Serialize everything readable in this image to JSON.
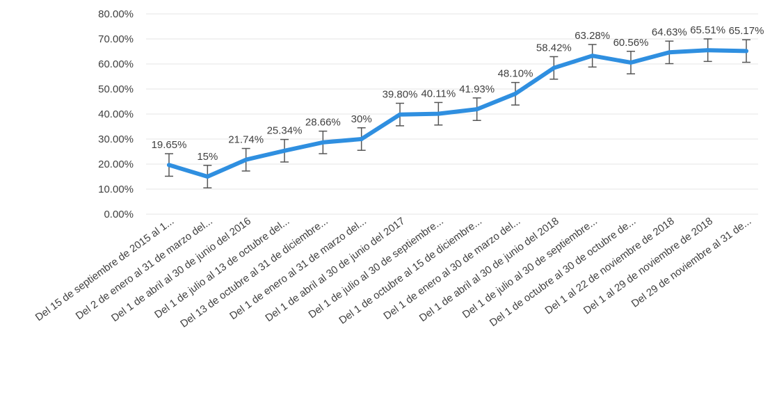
{
  "chart_data": {
    "type": "line",
    "title": "",
    "xlabel": "",
    "ylabel": "",
    "ylim": [
      0,
      80
    ],
    "yticks": [
      "0.00%",
      "10.00%",
      "20.00%",
      "30.00%",
      "40.00%",
      "50.00%",
      "60.00%",
      "70.00%",
      "80.00%"
    ],
    "grid": true,
    "legend": "none",
    "error_bars": true,
    "error_bar_size": 4.5,
    "categories": [
      "Del 15 de septiembre de 2015 al 1...",
      "Del 2 de enero al 31 de marzo del...",
      "Del 1 de abril al 30 de junio del 2016",
      "Del 1 de julio al 13 de octubre del...",
      "Del 13 de octubre al 31 de diciembre...",
      "Del 1 de enero al 31 de marzo del...",
      "Del 1 de abril al 30 de junio del 2017",
      "Del 1 de julio al 30 de septiembre...",
      "Del 1 de octubre al 15 de diciembre...",
      "Del 1 de enero al 30 de marzo del...",
      "Del 1 de abril al 30 de junio del 2018",
      "Del 1 de julio al 30 de septiembre...",
      "Del 1 de octubre al 30 de octubre de...",
      "Del 1 al 22 de noviembre de 2018",
      "Del 1 al 29 de noviembre de 2018",
      "Del 29 de noviembre al 31 de..."
    ],
    "values": [
      19.65,
      15,
      21.74,
      25.34,
      28.66,
      30,
      39.8,
      40.11,
      41.93,
      48.1,
      58.42,
      63.28,
      60.56,
      64.63,
      65.51,
      65.17
    ],
    "data_labels": [
      "19.65%",
      "15%",
      "21.74%",
      "25.34%",
      "28.66%",
      "30%",
      "39.80%",
      "40.11%",
      "41.93%",
      "48.10%",
      "58.42%",
      "63.28%",
      "60.56%",
      "64.63%",
      "65.51%",
      "65.17%"
    ],
    "line_color": "#2f8fe0",
    "errorbar_color": "#555555",
    "grid_color": "#e4e4e4"
  }
}
